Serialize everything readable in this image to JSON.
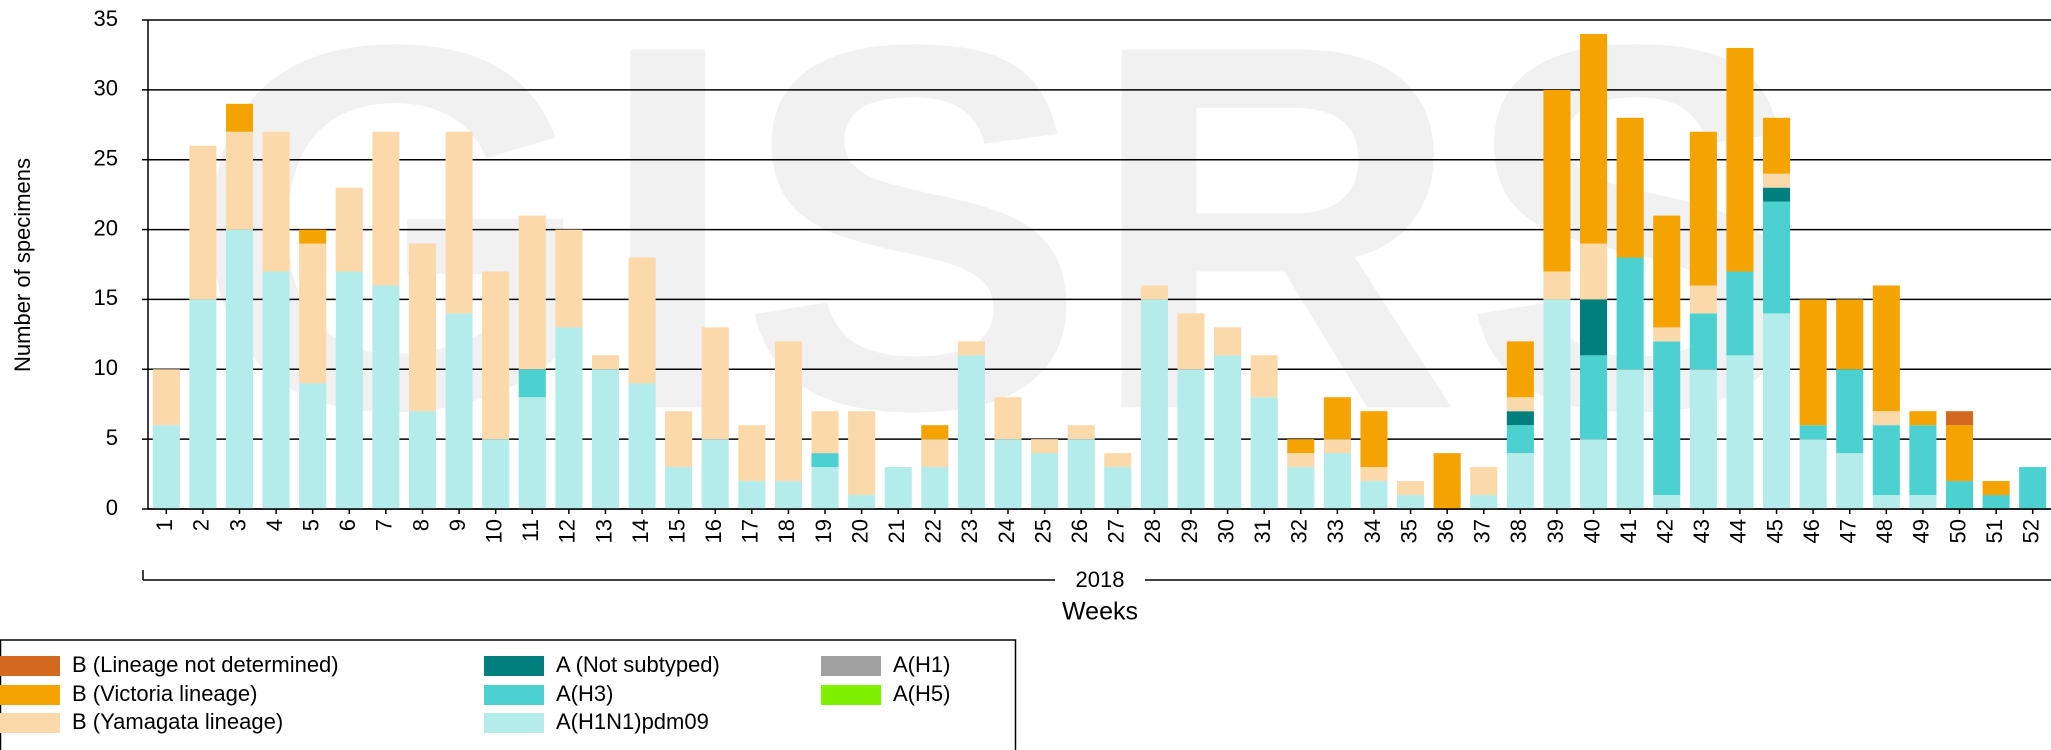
{
  "chart_data": {
    "type": "stacked_bar",
    "watermark": "GISRS",
    "y_label": "Number of specimens",
    "x_label": "Weeks",
    "x_group_label": "2018",
    "categories": [
      "1",
      "2",
      "3",
      "4",
      "5",
      "6",
      "7",
      "8",
      "9",
      "10",
      "11",
      "12",
      "13",
      "14",
      "15",
      "16",
      "17",
      "18",
      "19",
      "20",
      "21",
      "22",
      "23",
      "24",
      "25",
      "26",
      "27",
      "28",
      "29",
      "30",
      "31",
      "32",
      "33",
      "34",
      "35",
      "36",
      "37",
      "38",
      "39",
      "40",
      "41",
      "42",
      "43",
      "44",
      "45",
      "46",
      "47",
      "48",
      "49",
      "50",
      "51",
      "52"
    ],
    "ylim": [
      0,
      35
    ],
    "yticks": [
      0,
      5,
      10,
      15,
      20,
      25,
      30,
      35
    ],
    "grid": true,
    "series": [
      {
        "name": "A(H1N1)pdm09",
        "color": "#b4ecec",
        "values": [
          6,
          15,
          20,
          17,
          9,
          17,
          16,
          7,
          14,
          5,
          8,
          13,
          10,
          9,
          3,
          5,
          2,
          2,
          3,
          1,
          3,
          3,
          11,
          5,
          4,
          5,
          3,
          15,
          10,
          11,
          8,
          3,
          4,
          2,
          1,
          0,
          1,
          4,
          15,
          5,
          10,
          1,
          10,
          11,
          14,
          5,
          4,
          1,
          1,
          0,
          0,
          0
        ]
      },
      {
        "name": "A(H3)",
        "color": "#4dd0d0",
        "values": [
          0,
          0,
          0,
          0,
          0,
          0,
          0,
          0,
          0,
          0,
          2,
          0,
          0,
          0,
          0,
          0,
          0,
          0,
          1,
          0,
          0,
          0,
          0,
          0,
          0,
          0,
          0,
          0,
          0,
          0,
          0,
          0,
          0,
          0,
          0,
          0,
          0,
          2,
          0,
          6,
          8,
          11,
          4,
          6,
          8,
          1,
          6,
          5,
          5,
          2,
          1,
          3
        ]
      },
      {
        "name": "A (Not subtyped)",
        "color": "#007f7f",
        "values": [
          0,
          0,
          0,
          0,
          0,
          0,
          0,
          0,
          0,
          0,
          0,
          0,
          0,
          0,
          0,
          0,
          0,
          0,
          0,
          0,
          0,
          0,
          0,
          0,
          0,
          0,
          0,
          0,
          0,
          0,
          0,
          0,
          0,
          0,
          0,
          0,
          0,
          1,
          0,
          4,
          0,
          0,
          0,
          0,
          1,
          0,
          0,
          0,
          0,
          0,
          0,
          0
        ]
      },
      {
        "name": "A(H1)",
        "color": "#a0a0a0",
        "values": [
          0,
          0,
          0,
          0,
          0,
          0,
          0,
          0,
          0,
          0,
          0,
          0,
          0,
          0,
          0,
          0,
          0,
          0,
          0,
          0,
          0,
          0,
          0,
          0,
          0,
          0,
          0,
          0,
          0,
          0,
          0,
          0,
          0,
          0,
          0,
          0,
          0,
          0,
          0,
          0,
          0,
          0,
          0,
          0,
          0,
          0,
          0,
          0,
          0,
          0,
          0,
          0
        ]
      },
      {
        "name": "A(H5)",
        "color": "#80f000",
        "values": [
          0,
          0,
          0,
          0,
          0,
          0,
          0,
          0,
          0,
          0,
          0,
          0,
          0,
          0,
          0,
          0,
          0,
          0,
          0,
          0,
          0,
          0,
          0,
          0,
          0,
          0,
          0,
          0,
          0,
          0,
          0,
          0,
          0,
          0,
          0,
          0,
          0,
          0,
          0,
          0,
          0,
          0,
          0,
          0,
          0,
          0,
          0,
          0,
          0,
          0,
          0,
          0
        ]
      },
      {
        "name": "B (Yamagata lineage)",
        "color": "#fcd9aa",
        "values": [
          4,
          11,
          7,
          10,
          10,
          6,
          11,
          12,
          13,
          12,
          11,
          7,
          1,
          9,
          4,
          8,
          4,
          10,
          3,
          6,
          0,
          2,
          1,
          3,
          1,
          1,
          1,
          1,
          4,
          2,
          3,
          1,
          1,
          1,
          1,
          0,
          2,
          1,
          2,
          4,
          0,
          1,
          2,
          0,
          1,
          0,
          0,
          1,
          0,
          0,
          0,
          0
        ]
      },
      {
        "name": "B (Victoria lineage)",
        "color": "#f5a300",
        "values": [
          0,
          0,
          2,
          0,
          1,
          0,
          0,
          0,
          0,
          0,
          0,
          0,
          0,
          0,
          0,
          0,
          0,
          0,
          0,
          0,
          0,
          1,
          0,
          0,
          0,
          0,
          0,
          0,
          0,
          0,
          0,
          1,
          3,
          4,
          0,
          4,
          0,
          4,
          13,
          15,
          10,
          8,
          11,
          16,
          4,
          9,
          5,
          9,
          1,
          4,
          1,
          0
        ]
      },
      {
        "name": "B (Lineage not determined)",
        "color": "#d2691e",
        "values": [
          0,
          0,
          0,
          0,
          0,
          0,
          0,
          0,
          0,
          0,
          0,
          0,
          0,
          0,
          0,
          0,
          0,
          0,
          0,
          0,
          0,
          0,
          0,
          0,
          0,
          0,
          0,
          0,
          0,
          0,
          0,
          0,
          0,
          0,
          0,
          0,
          0,
          0,
          0,
          0,
          0,
          0,
          0,
          0,
          0,
          0,
          0,
          0,
          0,
          1,
          0,
          0
        ]
      }
    ],
    "legend_order": [
      7,
      6,
      5,
      2,
      1,
      0,
      3,
      4
    ]
  }
}
